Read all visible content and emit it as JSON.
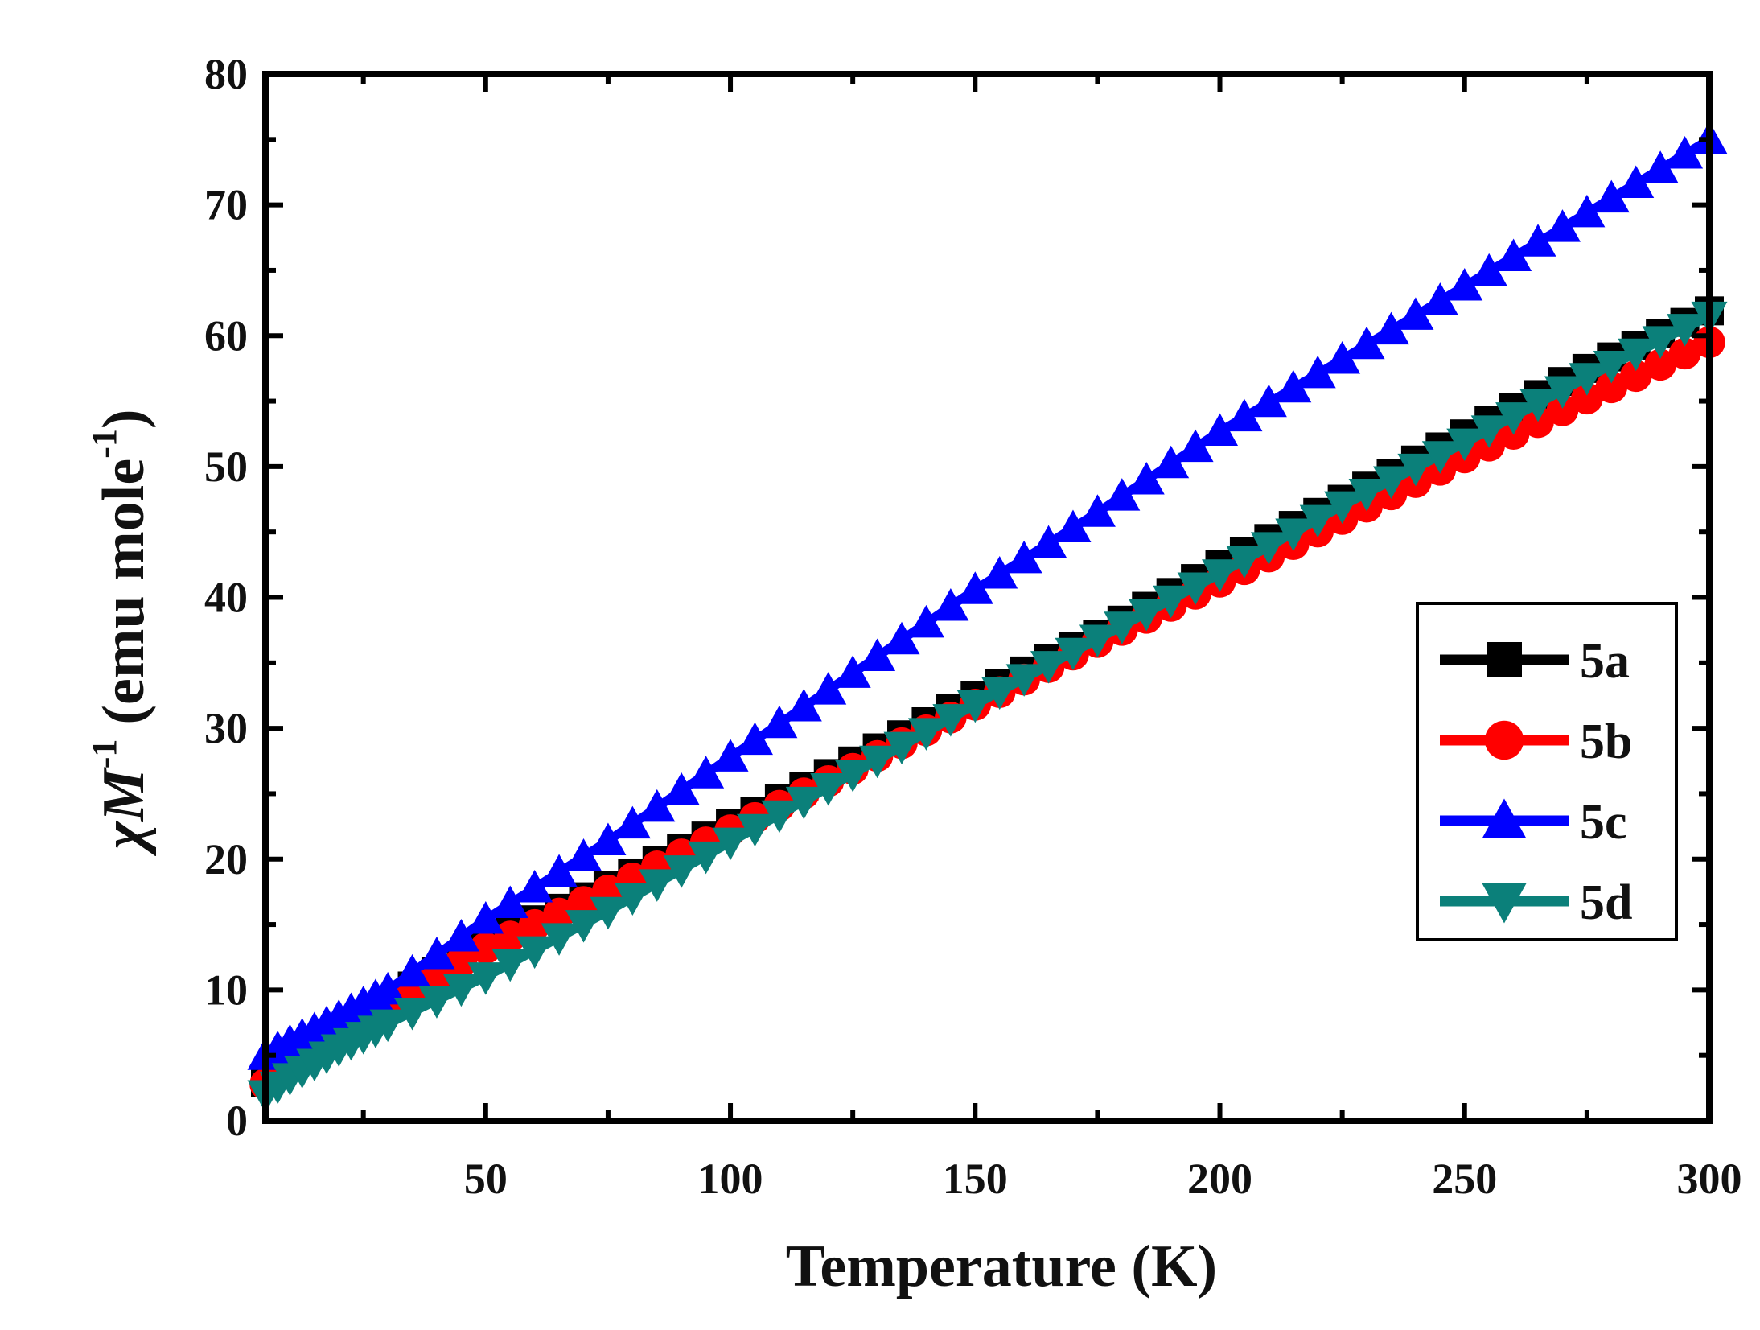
{
  "chart_data": {
    "type": "line",
    "title": "",
    "xlabel": "Temperature (K)",
    "ylabel_parts": {
      "symbol": "χ",
      "subscript": "M",
      "superscript": "-1",
      "units_open": "(emu mole",
      "units_sup": "-1",
      "units_close": ")"
    },
    "xlim": [
      5,
      300
    ],
    "ylim": [
      0,
      80
    ],
    "xticks": [
      50,
      100,
      150,
      200,
      250,
      300
    ],
    "yticks": [
      0,
      10,
      20,
      30,
      40,
      50,
      60,
      70,
      80
    ],
    "legend_position": "right-middle",
    "grid": false,
    "series": [
      {
        "name": "5a",
        "color": "#000000",
        "marker": "square",
        "points": [
          [
            5,
            2.9
          ],
          [
            10,
            4.3
          ],
          [
            20,
            6.8
          ],
          [
            30,
            9.2
          ],
          [
            50,
            13.6
          ],
          [
            75,
            18.0
          ],
          [
            100,
            22.7
          ],
          [
            125,
            27.5
          ],
          [
            150,
            32.5
          ],
          [
            175,
            37.2
          ],
          [
            200,
            42.5
          ],
          [
            225,
            47.5
          ],
          [
            250,
            52.5
          ],
          [
            275,
            57.5
          ],
          [
            300,
            61.9
          ]
        ]
      },
      {
        "name": "5b",
        "color": "#ff0000",
        "marker": "circle",
        "points": [
          [
            5,
            2.8
          ],
          [
            10,
            4.2
          ],
          [
            20,
            6.6
          ],
          [
            30,
            9.0
          ],
          [
            50,
            13.2
          ],
          [
            75,
            17.6
          ],
          [
            100,
            22.2
          ],
          [
            125,
            26.9
          ],
          [
            150,
            31.8
          ],
          [
            175,
            36.6
          ],
          [
            200,
            41.2
          ],
          [
            225,
            46.0
          ],
          [
            250,
            50.7
          ],
          [
            275,
            55.2
          ],
          [
            300,
            59.5
          ]
        ]
      },
      {
        "name": "5c",
        "color": "#0000ff",
        "marker": "triangle-up",
        "points": [
          [
            5,
            5.0
          ],
          [
            10,
            6.0
          ],
          [
            20,
            7.9
          ],
          [
            30,
            10.0
          ],
          [
            50,
            15.4
          ],
          [
            75,
            21.4
          ],
          [
            100,
            27.8
          ],
          [
            125,
            34.2
          ],
          [
            150,
            40.6
          ],
          [
            175,
            46.5
          ],
          [
            200,
            52.7
          ],
          [
            225,
            58.2
          ],
          [
            250,
            63.8
          ],
          [
            275,
            69.4
          ],
          [
            300,
            75.0
          ]
        ]
      },
      {
        "name": "5d",
        "color": "#0b807a",
        "marker": "triangle-down",
        "points": [
          [
            5,
            2.0
          ],
          [
            10,
            3.3
          ],
          [
            20,
            5.5
          ],
          [
            30,
            7.4
          ],
          [
            50,
            11.0
          ],
          [
            75,
            16.0
          ],
          [
            100,
            21.3
          ],
          [
            125,
            26.5
          ],
          [
            150,
            31.8
          ],
          [
            175,
            36.8
          ],
          [
            200,
            41.8
          ],
          [
            225,
            47.0
          ],
          [
            250,
            51.8
          ],
          [
            275,
            56.8
          ],
          [
            300,
            61.5
          ]
        ]
      }
    ]
  }
}
